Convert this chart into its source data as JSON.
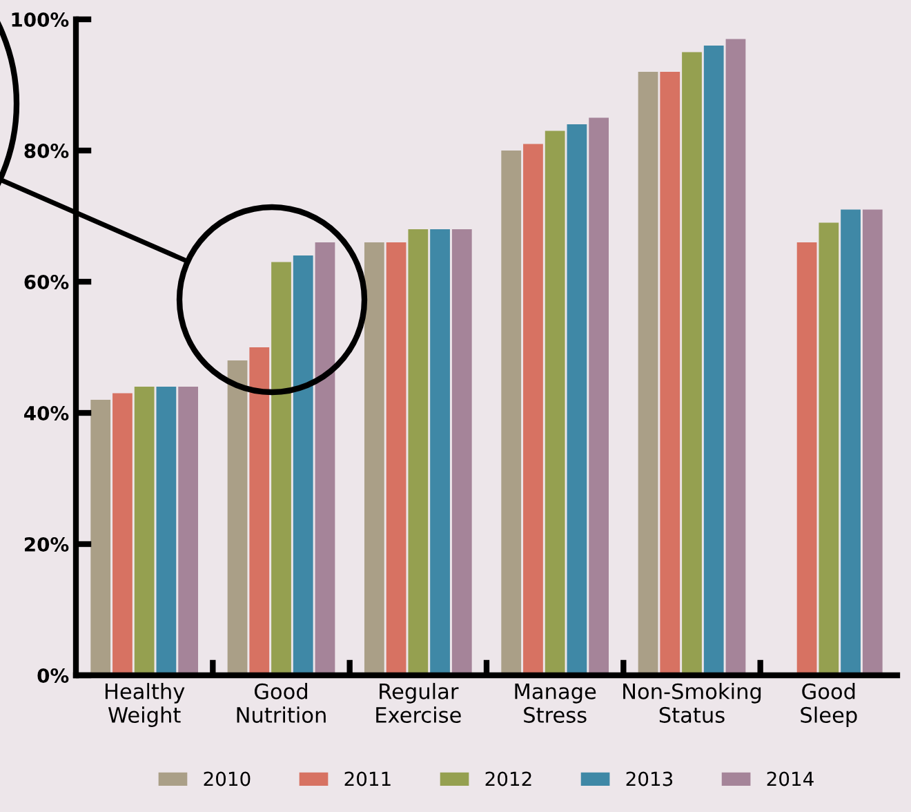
{
  "chart_data": {
    "type": "bar",
    "categories": [
      "Healthy\nWeight",
      "Good\nNutrition",
      "Regular\nExercise",
      "Manage\nStress",
      "Non-Smoking\nStatus",
      "Good\nSleep"
    ],
    "series": [
      {
        "name": "2010",
        "color": "#aa9f87",
        "values": [
          42,
          48,
          66,
          80,
          92,
          null
        ]
      },
      {
        "name": "2011",
        "color": "#d77262",
        "values": [
          43,
          50,
          66,
          81,
          92,
          66
        ]
      },
      {
        "name": "2012",
        "color": "#95a050",
        "values": [
          44,
          63,
          68,
          83,
          95,
          69
        ]
      },
      {
        "name": "2013",
        "color": "#3f88a6",
        "values": [
          44,
          64,
          68,
          84,
          96,
          71
        ]
      },
      {
        "name": "2014",
        "color": "#a58499",
        "values": [
          44,
          66,
          68,
          85,
          97,
          71
        ]
      }
    ],
    "ylim": [
      0,
      100
    ],
    "yticks": [
      {
        "value": 0,
        "label": "0%"
      },
      {
        "value": 20,
        "label": "20%"
      },
      {
        "value": 40,
        "label": "40%"
      },
      {
        "value": 60,
        "label": "60%"
      },
      {
        "value": 80,
        "label": "80%"
      },
      {
        "value": 100,
        "label": "100%"
      }
    ],
    "grid": false,
    "legend": "bottom"
  }
}
